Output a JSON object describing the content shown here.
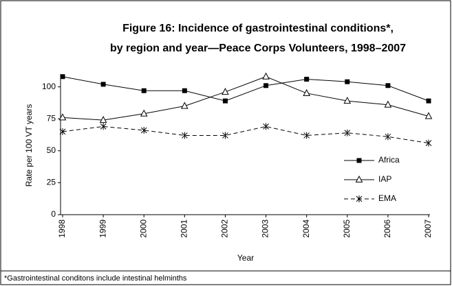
{
  "chart_data": {
    "type": "line",
    "title": "Figure 16:  Incidence of gastrointestinal conditions*,",
    "subtitle": "by region and year—Peace Corps Volunteers, 1998–2007",
    "x_label": "Year",
    "y_label": "Rate per 100 VT years",
    "footnote": "*Gastrointestinal conditons include intestinal helminths",
    "categories": [
      "1998",
      "1999",
      "2000",
      "2001",
      "2002",
      "2003",
      "2004",
      "2005",
      "2006",
      "2007"
    ],
    "series": [
      {
        "name": "Africa",
        "color": "#000000",
        "marker": "square",
        "dash": "solid",
        "values": [
          108,
          102,
          97,
          97,
          89,
          101,
          106,
          104,
          101,
          89
        ]
      },
      {
        "name": "IAP",
        "color": "#000000",
        "marker": "triangle",
        "dash": "solid",
        "values": [
          76,
          74,
          79,
          85,
          96,
          108,
          95,
          89,
          86,
          77
        ]
      },
      {
        "name": "EMA",
        "color": "#000000",
        "marker": "asterisk",
        "dash": "dashed",
        "values": [
          65,
          69,
          66,
          62,
          62,
          69,
          62,
          64,
          61,
          56
        ]
      }
    ],
    "ylim": [
      0,
      110
    ],
    "yticks": [
      0,
      25,
      50,
      75,
      100
    ],
    "grid": false,
    "legend": "lower right"
  }
}
